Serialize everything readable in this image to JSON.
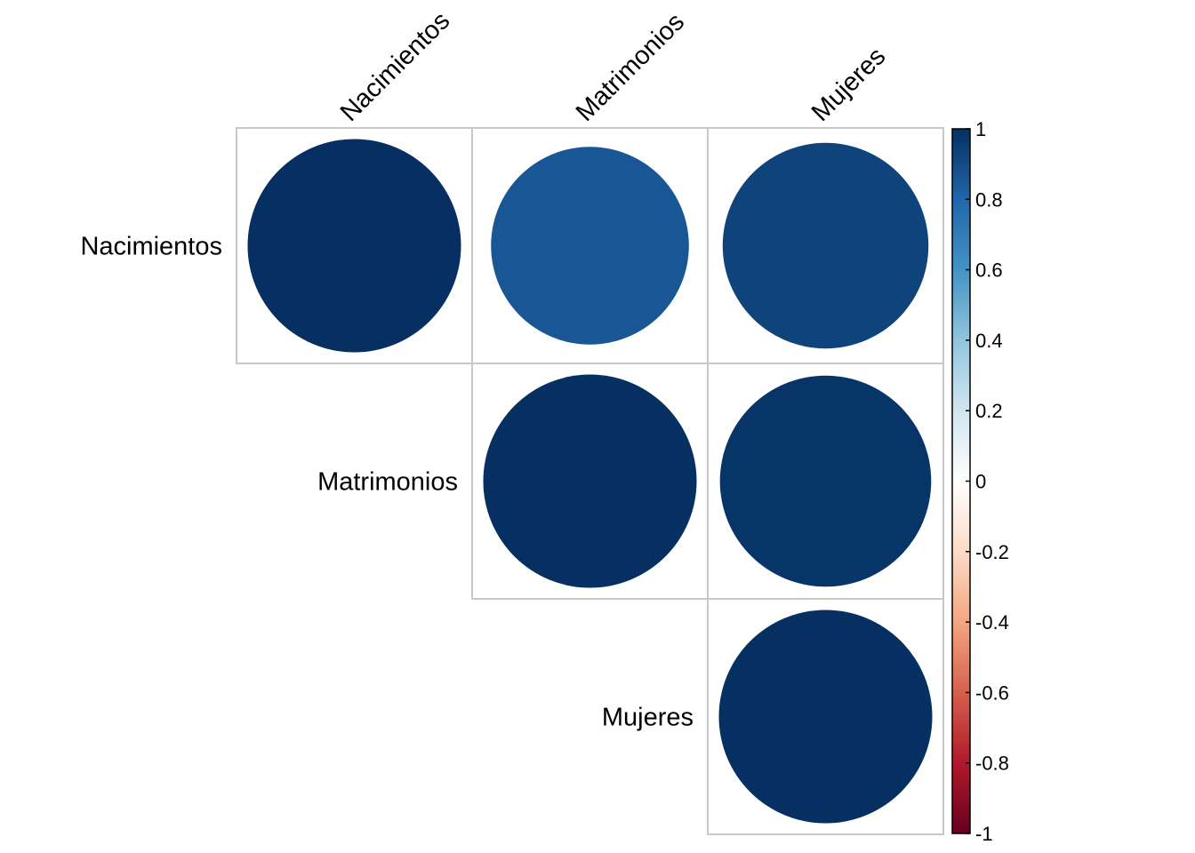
{
  "chart_data": {
    "type": "heatmap",
    "subtype": "correlation-matrix-upper-circles",
    "variables": [
      "Nacimientos",
      "Matrimonios",
      "Mujeres"
    ],
    "cells": [
      {
        "row": 0,
        "col": 0,
        "value": 1.0
      },
      {
        "row": 0,
        "col": 1,
        "value": 0.86
      },
      {
        "row": 0,
        "col": 2,
        "value": 0.93
      },
      {
        "row": 1,
        "col": 1,
        "value": 1.0
      },
      {
        "row": 1,
        "col": 2,
        "value": 0.98
      },
      {
        "row": 2,
        "col": 2,
        "value": 1.0
      }
    ],
    "colorbar": {
      "range": [
        -1,
        1
      ],
      "ticks": [
        "1",
        "0.8",
        "0.6",
        "0.4",
        "0.2",
        "0",
        "-0.2",
        "-0.4",
        "-0.6",
        "-0.8",
        "-1"
      ],
      "colors": [
        "#67001F",
        "#B2182B",
        "#D6604D",
        "#F4A582",
        "#FDDBC7",
        "#FFFFFF",
        "#D1E5F0",
        "#92C5DE",
        "#4393C3",
        "#2166AC",
        "#053061"
      ]
    },
    "legend_position": "right",
    "grid": true
  }
}
